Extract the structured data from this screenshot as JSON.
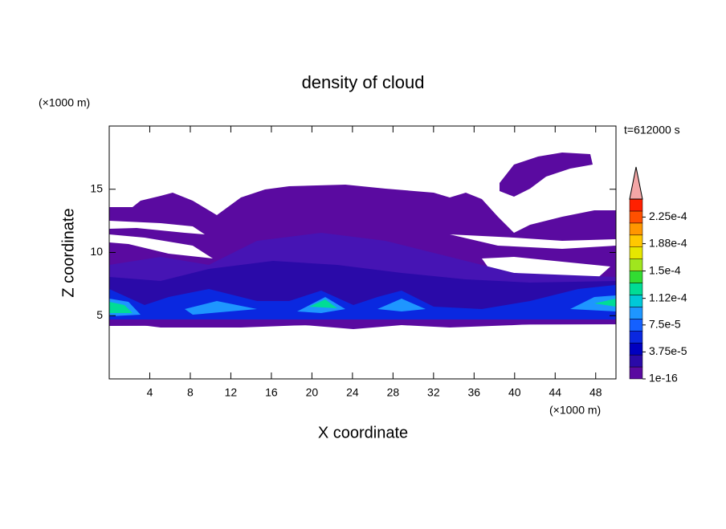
{
  "chart_data": {
    "type": "contour",
    "title": "density of cloud",
    "xlabel": "X coordinate",
    "ylabel": "Z coordinate",
    "x_unit": "(×1000 m)",
    "y_unit": "(×1000 m)",
    "annotation": "t=612000 s",
    "xlim": [
      0,
      50
    ],
    "ylim": [
      0,
      20
    ],
    "xticks": [
      4,
      8,
      12,
      16,
      20,
      24,
      28,
      32,
      36,
      40,
      44,
      48
    ],
    "yticks": [
      5,
      10,
      15
    ],
    "clim": [
      1e-16,
      0.00025
    ],
    "cticks": [
      {
        "value": 1e-16,
        "label": "1e-16"
      },
      {
        "value": 3.75e-05,
        "label": "3.75e-5"
      },
      {
        "value": 7.5e-05,
        "label": "7.5e-5"
      },
      {
        "value": 0.000112,
        "label": "1.12e-4"
      },
      {
        "value": 0.00015,
        "label": "1.5e-4"
      },
      {
        "value": 0.000188,
        "label": "1.88e-4"
      },
      {
        "value": 0.000225,
        "label": "2.25e-4"
      }
    ],
    "colors": [
      "#5a0aa0",
      "#2a0aa8",
      "#0000c0",
      "#0a28e0",
      "#1460ff",
      "#1e96ff",
      "#00c8d8",
      "#00dc96",
      "#32dc32",
      "#a0e61e",
      "#e6e600",
      "#ffc800",
      "#ff9600",
      "#ff5000",
      "#ff2000"
    ],
    "extend_color": "#f4a6a6"
  }
}
